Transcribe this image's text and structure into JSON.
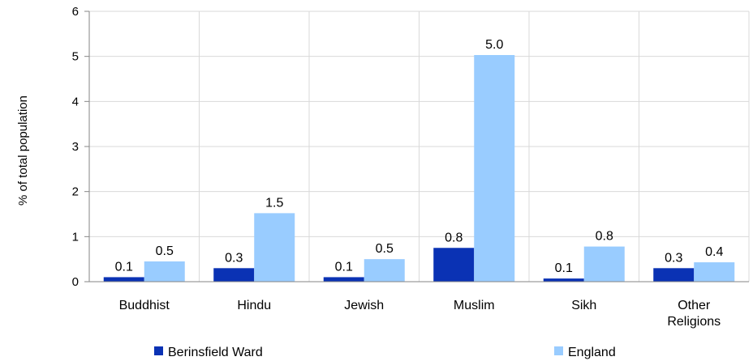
{
  "chart_data": {
    "type": "bar",
    "title": "",
    "xlabel": "",
    "ylabel": "% of total population",
    "ylim": [
      0,
      6
    ],
    "yticks": [
      "0",
      "1",
      "2",
      "3",
      "4",
      "5",
      "6"
    ],
    "grid": true,
    "legend_position": "bottom",
    "categories": [
      [
        "Buddhist"
      ],
      [
        "Hindu"
      ],
      [
        "Jewish"
      ],
      [
        "Muslim"
      ],
      [
        "Sikh"
      ],
      [
        "Other",
        "Religions"
      ]
    ],
    "series": [
      {
        "name": "Berinsfield Ward",
        "color": "#0a32b4",
        "values": [
          0.1,
          0.3,
          0.1,
          0.75,
          0.07,
          0.3
        ],
        "labels": [
          "0.1",
          "0.3",
          "0.1",
          "0.8",
          "0.1",
          "0.3"
        ]
      },
      {
        "name": "England",
        "color": "#99ccff",
        "values": [
          0.45,
          1.52,
          0.5,
          5.03,
          0.78,
          0.43
        ],
        "labels": [
          "0.5",
          "1.5",
          "0.5",
          "5.0",
          "0.8",
          "0.4"
        ]
      }
    ]
  }
}
